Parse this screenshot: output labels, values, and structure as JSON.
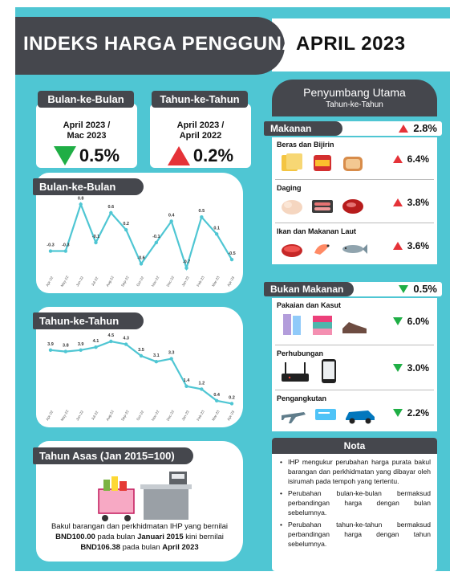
{
  "header": {
    "title": "INDEKS HARGA PENGGUNA",
    "date": "APRIL 2023",
    "top_line": "- ..."
  },
  "mom_box": {
    "label": "Bulan-ke-Bulan",
    "period_line1": "April 2023 /",
    "period_line2": "Mac 2023",
    "value": "0.5%",
    "direction": "down"
  },
  "yoy_box": {
    "label": "Tahun-ke-Tahun",
    "period_line1": "April 2023 /",
    "period_line2": "April 2022",
    "value": "0.2%",
    "direction": "up"
  },
  "chart_data": [
    {
      "type": "line",
      "title": "Bulan-ke-Bulan",
      "categories": [
        "Apr-22",
        "May-22",
        "Jun-22",
        "Jul-22",
        "Aug-22",
        "Sep-22",
        "Oct-22",
        "Nov-22",
        "Dec-22",
        "Jan-23",
        "Feb-23",
        "Mar-23",
        "Apr-23"
      ],
      "values": [
        -0.3,
        -0.3,
        0.8,
        -0.1,
        0.6,
        0.2,
        -0.6,
        -0.1,
        0.4,
        -0.7,
        0.5,
        0.1,
        -0.5
      ],
      "value_labels": [
        "-0.3",
        "-0.3",
        "0.8",
        "-0.1",
        "0.6",
        "0.2",
        "-0.6",
        "-0.1",
        "0.4",
        "-0.7",
        "0.5",
        "0.1",
        "-0.5"
      ],
      "ylim": [
        -0.8,
        0.9
      ],
      "color": "#4fc6d3"
    },
    {
      "type": "line",
      "title": "Tahun-ke-Tahun",
      "categories": [
        "Apr-22",
        "May-22",
        "Jun-22",
        "Jul-22",
        "Aug-22",
        "Sep-22",
        "Oct-22",
        "Nov-22",
        "Dec-22",
        "Jan-23",
        "Feb-23",
        "Mar-23",
        "Apr-23"
      ],
      "values": [
        3.9,
        3.8,
        3.9,
        4.1,
        4.5,
        4.3,
        3.5,
        3.1,
        3.3,
        1.4,
        1.2,
        0.4,
        0.2
      ],
      "value_labels": [
        "3.9",
        "3.8",
        "3.9",
        "4.1",
        "4.5",
        "4.3",
        "3.5",
        "3.1",
        "3.3",
        "1.4",
        "1.2",
        "0.4",
        "0.2"
      ],
      "ylim": [
        0,
        5
      ],
      "color": "#4fc6d3"
    }
  ],
  "side": {
    "title": "Penyumbang Utama",
    "subtitle": "Tahun-ke-Tahun",
    "food": {
      "label": "Makanan",
      "value": "2.8%",
      "direction": "up"
    },
    "food_items": [
      {
        "title": "Beras dan Bijirin",
        "value": "6.4%",
        "direction": "up",
        "icons": [
          "cracker-icon",
          "canned-food-icon",
          "bread-icon"
        ]
      },
      {
        "title": "Daging",
        "value": "3.8%",
        "direction": "up",
        "icons": [
          "chicken-icon",
          "sausage-icon",
          "beef-icon"
        ]
      },
      {
        "title": "Ikan dan Makanan Laut",
        "value": "3.6%",
        "direction": "up",
        "icons": [
          "sardine-can-icon",
          "shrimp-icon",
          "fish-icon"
        ]
      }
    ],
    "nonfood": {
      "label": "Bukan Makanan",
      "value": "0.5%",
      "direction": "down"
    },
    "nonfood_items": [
      {
        "title": "Pakaian dan Kasut",
        "value": "6.0%",
        "direction": "down",
        "icons": [
          "clothes-icon",
          "folded-clothes-icon",
          "shoes-icon"
        ]
      },
      {
        "title": "Perhubungan",
        "value": "3.0%",
        "direction": "down",
        "icons": [
          "router-icon",
          "smartphone-icon"
        ]
      },
      {
        "title": "Pengangkutan",
        "value": "2.2%",
        "direction": "down",
        "icons": [
          "airplane-icon",
          "ticket-icon",
          "car-icon"
        ]
      }
    ]
  },
  "base": {
    "label": "Tahun Asas (Jan 2015=100)",
    "text1": "Bakul barangan dan perkhidmatan IHP yang bernilai",
    "amount1": "BND100.00",
    "text2": " pada bulan ",
    "month1": "Januari 2015",
    "text3": " kini bernilai",
    "amount2": "BND106.38",
    "text4": " pada bulan ",
    "month2": "April 2023"
  },
  "nota": {
    "title": "Nota",
    "items": [
      "IHP mengukur perubahan harga purata bakul barangan dan perkhidmatan yang dibayar oleh isirumah pada tempoh yang tertentu.",
      "Perubahan bulan-ke-bulan bermaksud perbandingan harga dengan bulan sebelumnya.",
      "Perubahan tahun-ke-tahun bermaksud perbandingan harga dengan tahun sebelumnya."
    ]
  },
  "colors": {
    "teal": "#4fc6d3",
    "dark": "#45474d",
    "up": "#e53238",
    "down": "#1fae45"
  }
}
